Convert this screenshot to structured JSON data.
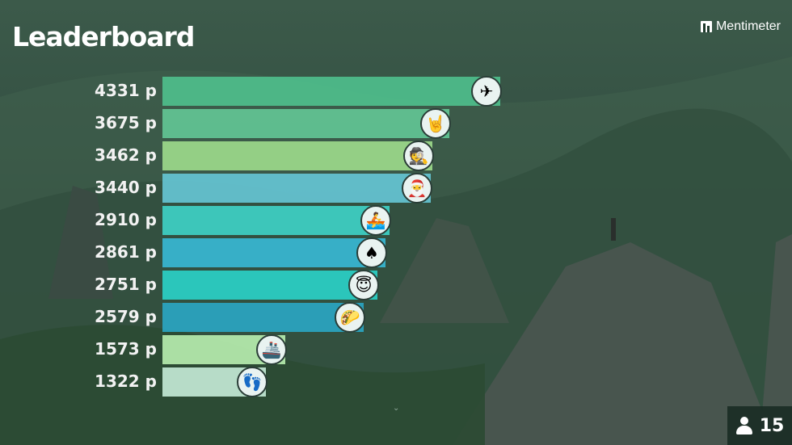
{
  "header": {
    "title": "Leaderboard",
    "brand": "Mentimeter"
  },
  "participants": {
    "count": "15",
    "icon": "person-icon"
  },
  "leaderboard": [
    {
      "score": "4331 p",
      "value": 4331,
      "color": "#4fc08d",
      "avatar": "airplane-icon",
      "glyph": "✈"
    },
    {
      "score": "3675 p",
      "value": 3675,
      "color": "#63c796",
      "avatar": "rock-hand-icon",
      "glyph": "🤘"
    },
    {
      "score": "3462 p",
      "value": 3462,
      "color": "#9fdc8c",
      "avatar": "spy-icon",
      "glyph": "🕵"
    },
    {
      "score": "3440 p",
      "value": 3440,
      "color": "#66c6d6",
      "avatar": "santa-icon",
      "glyph": "🎅"
    },
    {
      "score": "2910 p",
      "value": 2910,
      "color": "#3ed3c8",
      "avatar": "rowboat-icon",
      "glyph": "🚣"
    },
    {
      "score": "2861 p",
      "value": 2861,
      "color": "#37b9d6",
      "avatar": "spade-icon",
      "glyph": "♠"
    },
    {
      "score": "2751 p",
      "value": 2751,
      "color": "#2ad3c9",
      "avatar": "angel-icon",
      "glyph": "😇"
    },
    {
      "score": "2579 p",
      "value": 2579,
      "color": "#2aa6c4",
      "avatar": "taco-icon",
      "glyph": "🌮"
    },
    {
      "score": "1573 p",
      "value": 1573,
      "color": "#b9f0b0",
      "avatar": "ship-icon",
      "glyph": "🚢"
    },
    {
      "score": "1322 p",
      "value": 1322,
      "color": "#c6ecd8",
      "avatar": "footprints-icon",
      "glyph": "👣"
    }
  ]
}
